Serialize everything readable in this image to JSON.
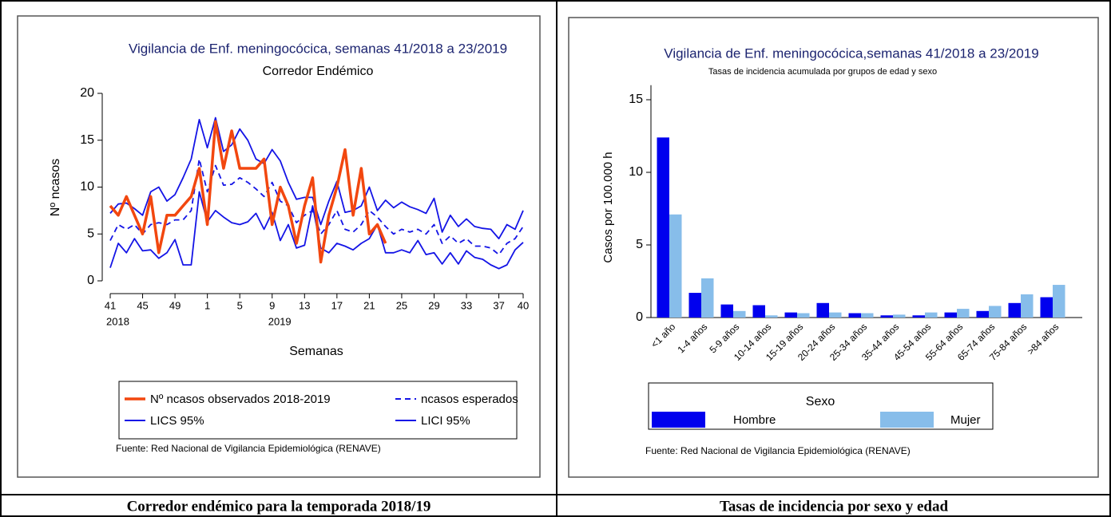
{
  "chart_data": [
    {
      "type": "line",
      "title": "Vigilancia de Enf. meningocócica, semanas 41/2018 a 23/2019",
      "subtitle": "Corredor Endémico",
      "xlabel": "Semanas",
      "ylabel": "Nº ncasos",
      "source": "Fuente: Red Nacional de Vigilancia Epidemiológica (RENAVE)",
      "categories": [
        "41",
        null,
        null,
        null,
        "45",
        null,
        null,
        null,
        "49",
        null,
        null,
        null,
        "1",
        null,
        null,
        null,
        "5",
        null,
        null,
        null,
        "9",
        null,
        null,
        null,
        "13",
        null,
        null,
        null,
        "17",
        null,
        null,
        null,
        "21",
        null,
        null,
        null,
        "25",
        null,
        null,
        null,
        "29",
        null,
        null,
        null,
        "33",
        null,
        null,
        null,
        "37",
        null,
        null,
        "40"
      ],
      "year_labels": [
        {
          "category": 0,
          "label": "2018"
        },
        {
          "category": 20,
          "label": "2019"
        }
      ],
      "ylim": [
        0,
        20
      ],
      "yticks": [
        0,
        5,
        10,
        15,
        20
      ],
      "series": [
        {
          "name": "Nº ncasos observados 2018-2019",
          "color": "#f2470f",
          "dashed": false,
          "values": [
            8,
            7,
            9,
            7,
            5,
            9,
            3,
            7,
            7,
            8,
            9,
            12,
            6,
            17,
            12,
            16,
            12,
            12,
            12,
            13,
            6,
            10,
            8,
            4,
            8,
            11,
            2,
            7,
            10,
            14,
            7,
            12,
            5,
            6,
            4,
            null,
            null,
            null,
            null,
            null,
            null,
            null,
            null,
            null,
            null,
            null,
            null,
            null,
            null,
            null,
            null,
            null
          ]
        },
        {
          "name": "ncasos esperados",
          "color": "#1414e6",
          "dashed": true,
          "values": [
            4.3,
            6,
            5.5,
            6,
            5,
            6,
            6.2,
            6,
            6.5,
            6.5,
            7.5,
            13,
            9.5,
            12.3,
            10.2,
            10.3,
            11,
            10.5,
            9.8,
            9,
            10.5,
            8.5,
            8,
            6.2,
            7,
            7.5,
            5,
            6,
            7.5,
            5.5,
            5.2,
            6,
            7.5,
            6.8,
            5.8,
            5,
            5.5,
            5.2,
            5.5,
            5,
            6,
            4,
            4.8,
            4,
            4.5,
            3.7,
            3.7,
            3.5,
            2.8,
            4,
            4.5,
            5.8
          ]
        },
        {
          "name": "LICS 95%",
          "color": "#1414e6",
          "dashed": false,
          "values": [
            7.2,
            8.2,
            8.3,
            7.7,
            7,
            9.5,
            10,
            8.5,
            9.2,
            11,
            13,
            17.2,
            14.2,
            17.4,
            13.8,
            14.5,
            16.2,
            15,
            13,
            12.5,
            14,
            12.8,
            10.5,
            8.7,
            8.9,
            8.9,
            6,
            8.5,
            10.6,
            7.3,
            7.5,
            8,
            10,
            7.5,
            8.6,
            7.8,
            8.4,
            7.9,
            7.6,
            7.2,
            8.8,
            5.2,
            7,
            5.8,
            6.6,
            5.8,
            5.6,
            5.5,
            4.5,
            6,
            5.5,
            7.5
          ]
        },
        {
          "name": "LICI 95%",
          "color": "#1414e6",
          "dashed": false,
          "values": [
            1.4,
            4,
            3,
            4.5,
            3.2,
            3.3,
            2.4,
            3,
            4.4,
            1.7,
            1.7,
            9.5,
            6.3,
            7.5,
            6.8,
            6.2,
            6,
            6.3,
            7.2,
            5.5,
            7.3,
            4.3,
            6,
            3.5,
            3.8,
            8,
            3.5,
            3,
            4,
            3.7,
            3.3,
            4,
            4.5,
            6,
            3,
            3,
            3.3,
            3,
            4.3,
            2.8,
            3,
            1.8,
            3,
            1.8,
            3.2,
            2.5,
            2.3,
            1.7,
            1.3,
            1.7,
            3.3,
            4.1
          ]
        }
      ]
    },
    {
      "type": "bar",
      "title": "Vigilancia de Enf. meningocócica,semanas 41/2018 a 23/2019",
      "subtitle": "Tasas de incidencia acumulada por grupos de edad y sexo",
      "ylabel": "Casos por 100.000 h",
      "source": "Fuente: Red Nacional de Vigilancia Epidemiológica (RENAVE)",
      "legend_title": "Sexo",
      "categories": [
        "<1 año",
        "1-4 años",
        "5-9 años",
        "10-14 años",
        "15-19 años",
        "20-24 años",
        "25-34 años",
        "35-44 años",
        "45-54 años",
        "55-64 años",
        "65-74 años",
        "75-84 años",
        ">84 años"
      ],
      "ylim": [
        0,
        16
      ],
      "yticks": [
        0,
        5,
        10,
        15
      ],
      "series": [
        {
          "name": "Hombre",
          "color": "#0000ee",
          "values": [
            12.4,
            1.7,
            0.9,
            0.85,
            0.35,
            1.0,
            0.3,
            0.15,
            0.15,
            0.35,
            0.45,
            1.0,
            1.4
          ]
        },
        {
          "name": "Mujer",
          "color": "#87bdea",
          "values": [
            7.1,
            2.7,
            0.45,
            0.15,
            0.3,
            0.35,
            0.3,
            0.2,
            0.35,
            0.6,
            0.8,
            1.6,
            2.25
          ]
        }
      ]
    }
  ],
  "captions": [
    "Corredor endémico para la temporada 2018/19",
    "Tasas de incidencia por sexo y edad"
  ]
}
